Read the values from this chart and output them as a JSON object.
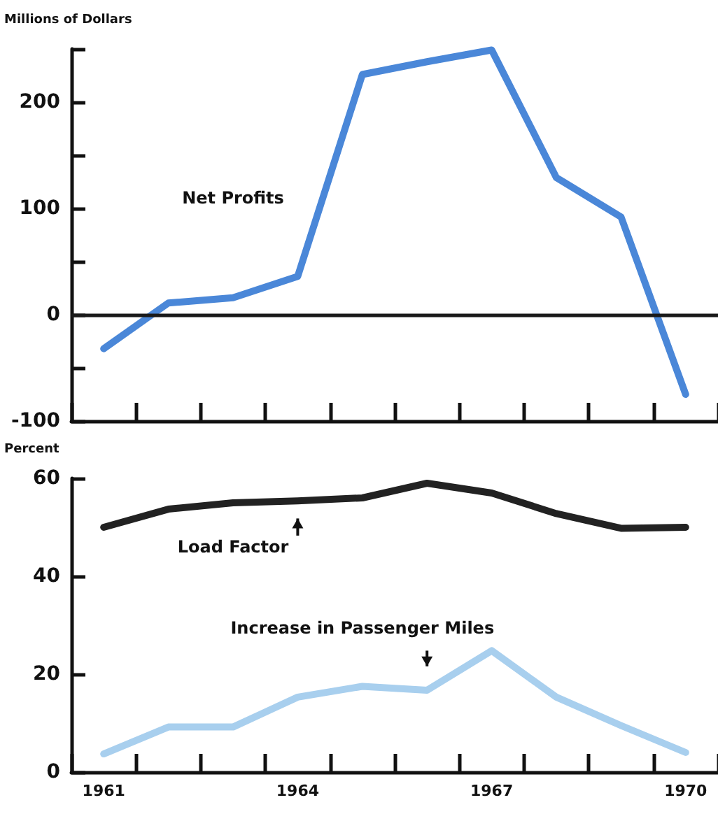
{
  "chart_data": [
    {
      "type": "line",
      "ylabel": "Millions of Dollars",
      "categories": [
        null,
        null,
        null,
        null,
        null,
        null,
        null,
        null,
        null,
        null
      ],
      "series": [
        {
          "name": "Net Profits",
          "color": "#4a87d8",
          "values": [
            -32,
            11,
            16,
            36,
            226,
            238,
            249,
            129,
            92,
            -75
          ]
        }
      ],
      "ylim": [
        -100,
        250
      ],
      "yticks": [
        -100,
        {
          "value": -50,
          "label": null
        },
        0,
        {
          "value": 50,
          "label": null
        },
        100,
        {
          "value": 150,
          "label": null
        },
        200,
        {
          "value": 250,
          "label": null
        }
      ],
      "ref_lines": [
        {
          "axis": "y",
          "value": 0,
          "color": "#1a1a1a"
        }
      ],
      "tick_labels": "y",
      "marker": "none",
      "legend": false,
      "grid": false
    },
    {
      "type": "line",
      "ylabel": "Percent",
      "categories": [
        "1961",
        null,
        null,
        "1964",
        null,
        null,
        "1967",
        null,
        null,
        "1970"
      ],
      "series": [
        {
          "name": "Load Factor",
          "color": "#222222",
          "values": [
            50,
            53.7,
            55,
            55.4,
            56,
            59,
            57,
            52.8,
            49.8,
            50
          ]
        },
        {
          "name": "Increase in Passenger Miles",
          "color": "#a8cfee",
          "values": [
            3.7,
            9.2,
            9.2,
            15.3,
            17.5,
            16.7,
            24.8,
            15.3,
            9.5,
            4
          ]
        }
      ],
      "ylim": [
        0,
        60
      ],
      "yticks": [
        0,
        20,
        40,
        60
      ],
      "marker": "none",
      "legend": false,
      "grid": false
    }
  ]
}
